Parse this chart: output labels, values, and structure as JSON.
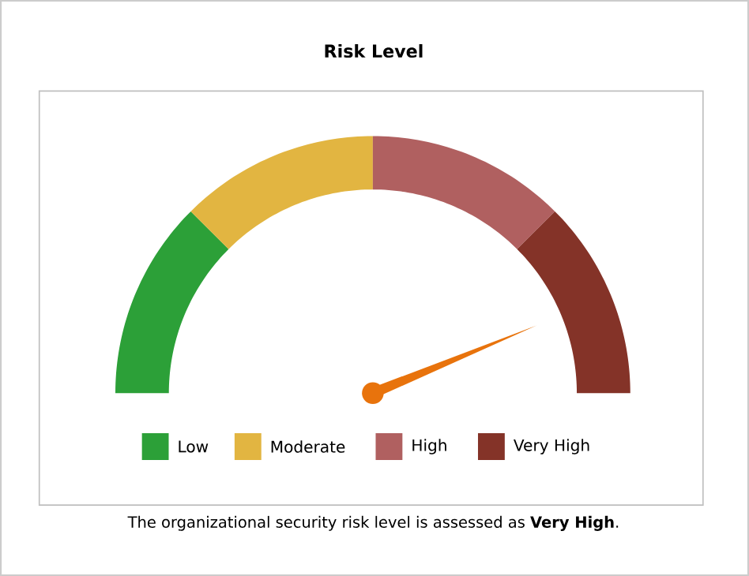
{
  "chart_data": {
    "type": "donut",
    "title": "Risk Level",
    "categories": [
      "Low",
      "Moderate",
      "High",
      "Very High"
    ],
    "values": [
      25,
      25,
      25,
      25
    ],
    "colors": [
      "#2ca038",
      "#e2b541",
      "#b06060",
      "#843328"
    ],
    "needle": "Very High",
    "legend": "bottom",
    "annotations": [
      "The organizational security risk level is assessed as **Very High**."
    ]
  }
}
